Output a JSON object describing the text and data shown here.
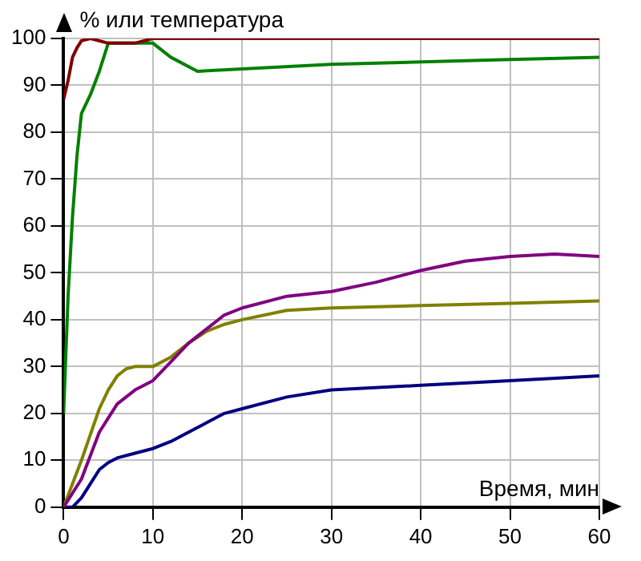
{
  "chart_data": {
    "type": "line",
    "ylabel": "% или температура",
    "xlabel": "Время, мин",
    "xlim": [
      0,
      60
    ],
    "xticks": [
      0,
      10,
      20,
      30,
      40,
      50,
      60
    ],
    "ylim": [
      0,
      100
    ],
    "yticks": [
      0,
      10,
      20,
      30,
      40,
      50,
      60,
      70,
      80,
      90,
      100
    ],
    "grid": true,
    "legend": false,
    "marker": "none",
    "line_style": "solid",
    "series": [
      {
        "color": "#800000",
        "x": [
          0,
          0.5,
          1,
          1.5,
          2,
          3,
          5,
          8,
          10,
          15,
          30,
          60
        ],
        "values": [
          87,
          91,
          96,
          98,
          99.5,
          100,
          99,
          99,
          100,
          100,
          100,
          100
        ]
      },
      {
        "color": "#008000",
        "x": [
          0,
          0.5,
          1,
          1.5,
          2,
          3,
          4,
          5,
          7,
          10,
          12,
          15,
          20,
          30,
          40,
          50,
          60
        ],
        "values": [
          20,
          45,
          62,
          75,
          84,
          88,
          93,
          99,
          99,
          99,
          96,
          93,
          93.5,
          94.5,
          95,
          95.5,
          96
        ]
      },
      {
        "color": "#800080",
        "x": [
          0,
          2,
          4,
          5,
          6,
          8,
          10,
          12,
          14,
          16,
          18,
          20,
          25,
          30,
          35,
          40,
          45,
          50,
          55,
          60
        ],
        "values": [
          0,
          6,
          16,
          19,
          22,
          25,
          27,
          31,
          35,
          38,
          41,
          42.5,
          45,
          46,
          48,
          50.5,
          52.5,
          53.5,
          54,
          53.5
        ]
      },
      {
        "color": "#808000",
        "x": [
          0,
          2,
          4,
          5,
          6,
          7,
          8,
          10,
          12,
          14,
          16,
          18,
          20,
          25,
          30,
          40,
          50,
          60
        ],
        "values": [
          0,
          10,
          21,
          25,
          28,
          29.5,
          30,
          30,
          32,
          35,
          37.5,
          39,
          40,
          42,
          42.5,
          43,
          43.5,
          44
        ]
      },
      {
        "color": "#000080",
        "x": [
          0,
          1,
          2,
          3,
          4,
          5,
          6,
          8,
          10,
          12,
          14,
          16,
          18,
          20,
          25,
          30,
          40,
          50,
          60
        ],
        "values": [
          0,
          0,
          2,
          5,
          8,
          9.5,
          10.5,
          11.5,
          12.5,
          14,
          16,
          18,
          20,
          21,
          23.5,
          25,
          26,
          27,
          28
        ]
      }
    ]
  }
}
